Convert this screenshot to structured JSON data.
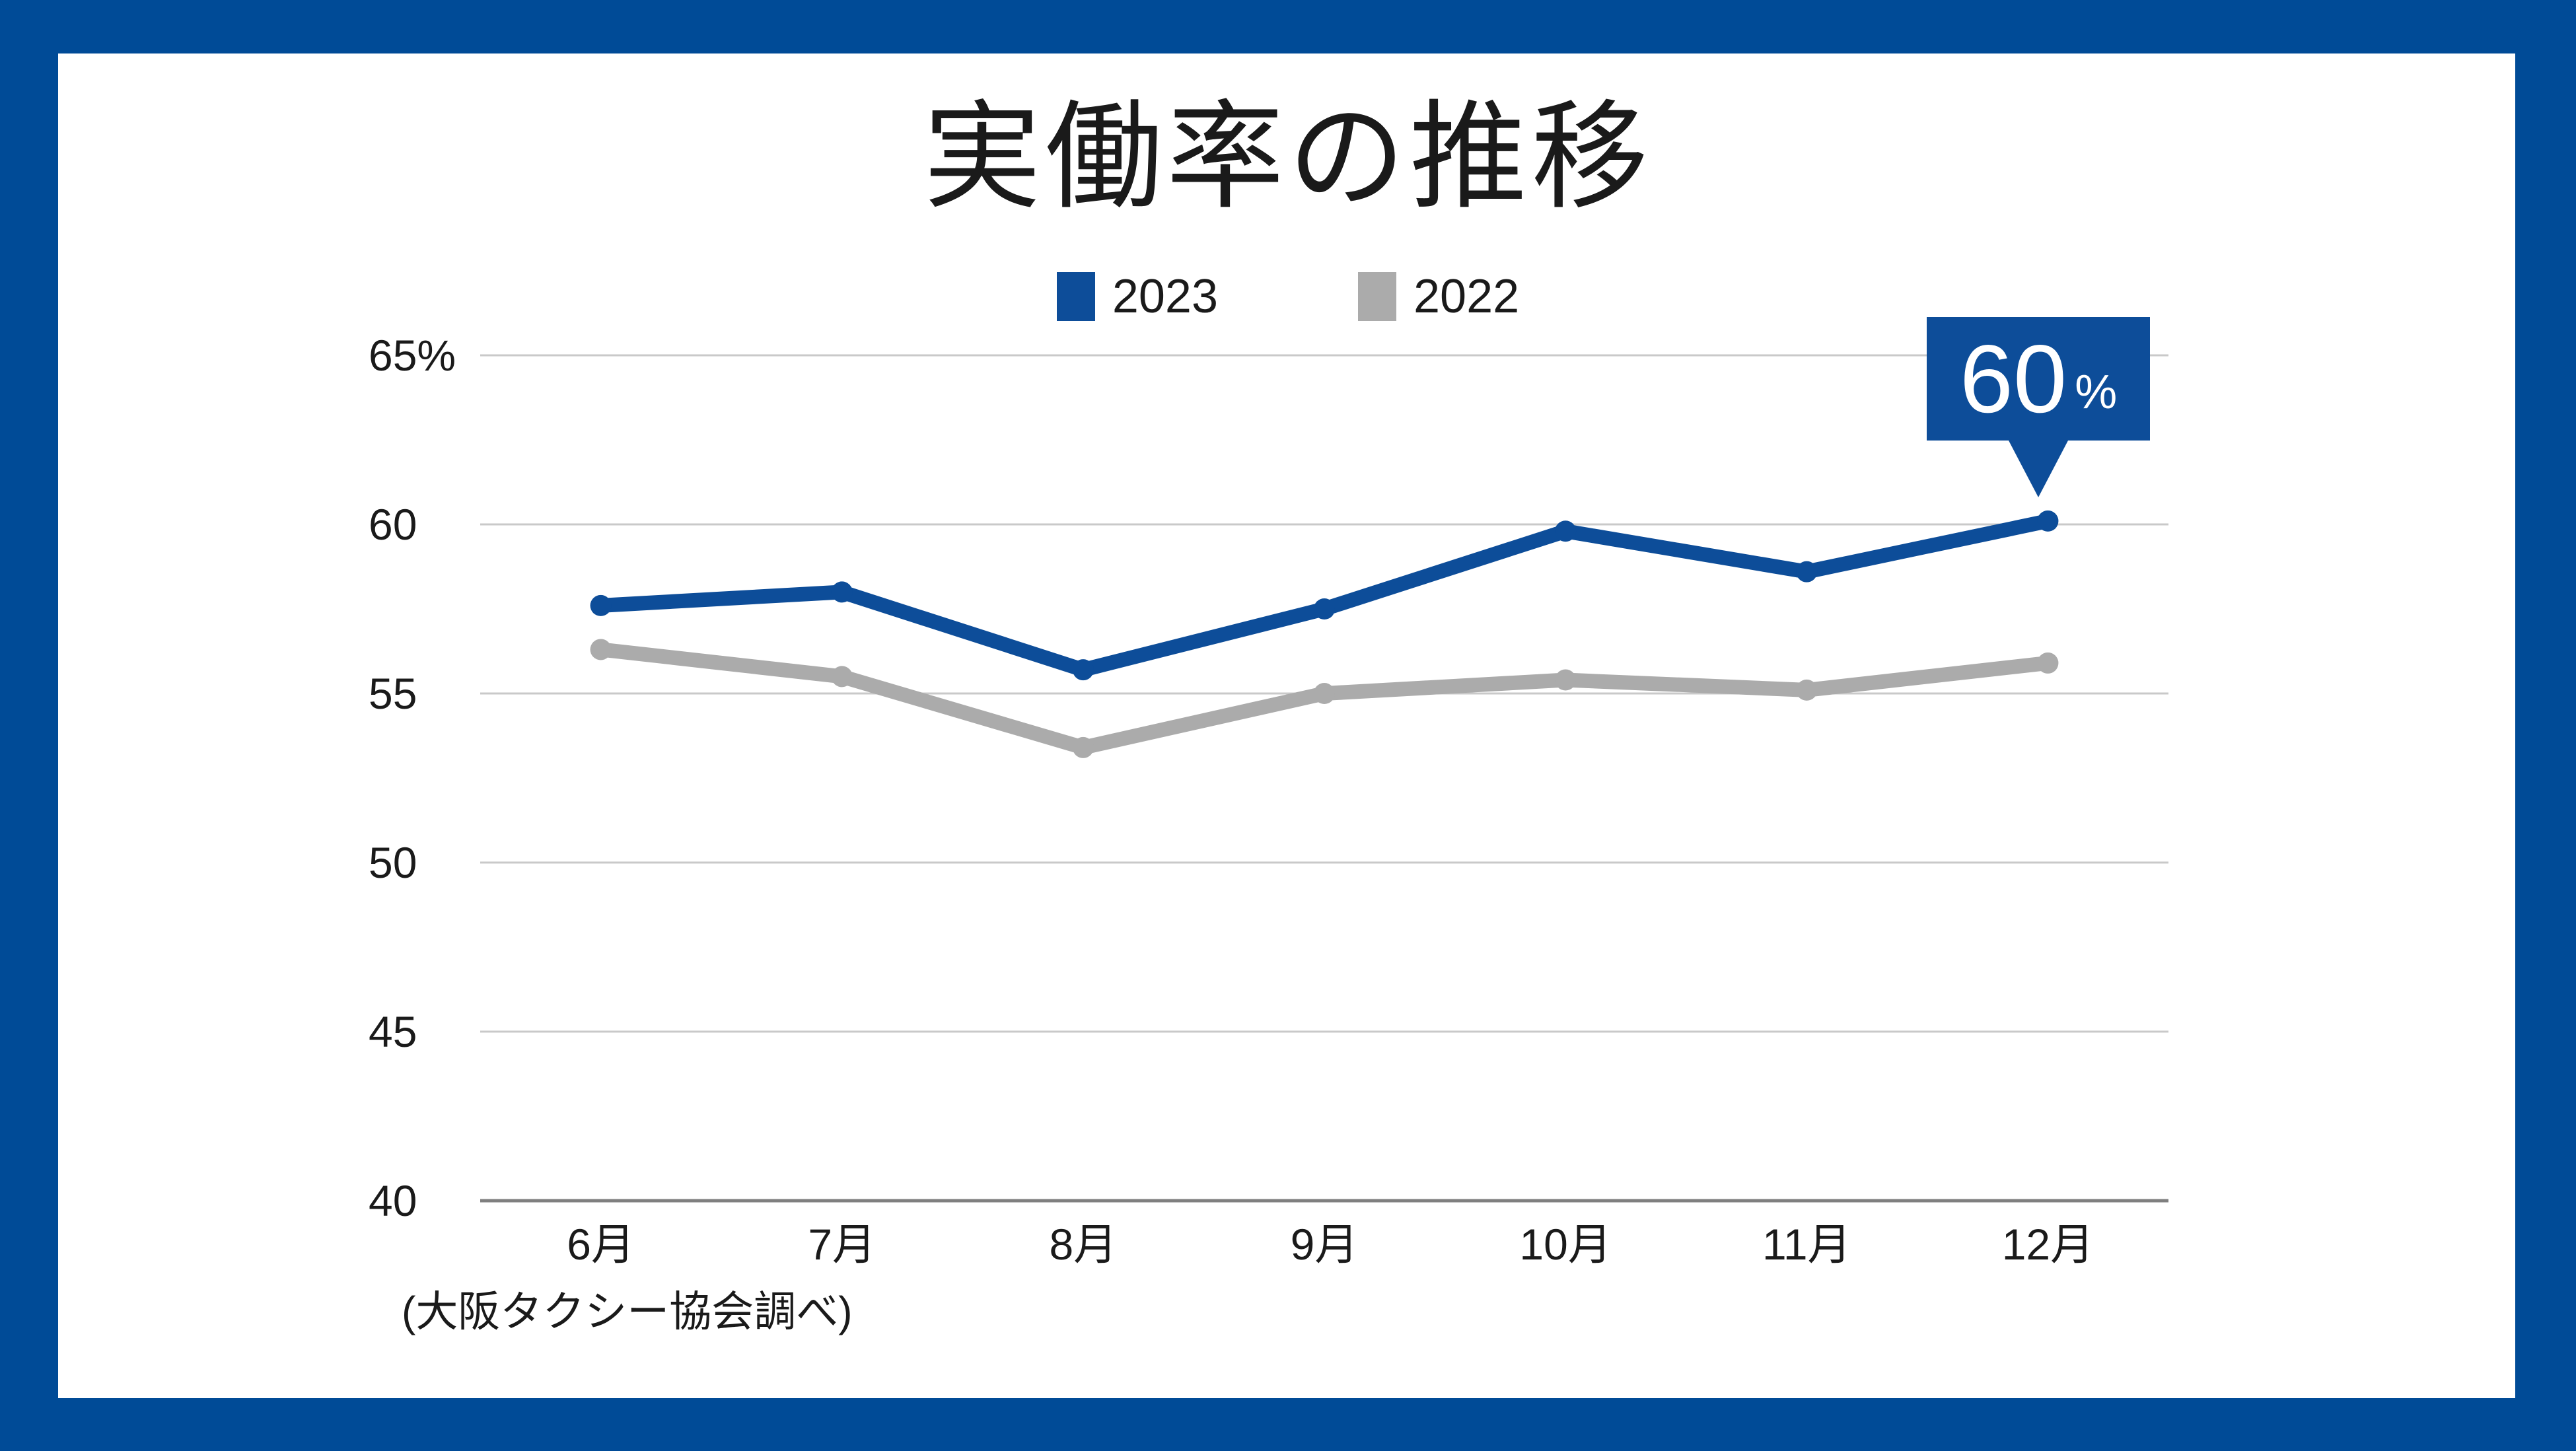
{
  "chart_data": {
    "type": "line",
    "title": "実働率の推移",
    "categories": [
      "6月",
      "7月",
      "8月",
      "9月",
      "10月",
      "11月",
      "12月"
    ],
    "series": [
      {
        "name": "2023",
        "color": "#0d4d99",
        "values": [
          57.6,
          58.0,
          55.7,
          57.5,
          59.8,
          58.6,
          60.1
        ]
      },
      {
        "name": "2022",
        "color": "#ababab",
        "values": [
          56.3,
          55.5,
          53.4,
          55.0,
          55.4,
          55.1,
          55.9
        ]
      }
    ],
    "ylim": [
      40,
      65
    ],
    "yticks": [
      {
        "value": 65,
        "label": "65%"
      },
      {
        "value": 60,
        "label": "60"
      },
      {
        "value": 55,
        "label": "55"
      },
      {
        "value": 50,
        "label": "50"
      },
      {
        "value": 45,
        "label": "45"
      },
      {
        "value": 40,
        "label": "40"
      }
    ],
    "xlabel": "",
    "ylabel": "",
    "grid": "horizontal",
    "legend_position": "top"
  },
  "callout": {
    "value": "60",
    "unit": "%"
  },
  "source_note": "(大阪タクシー協会調べ)",
  "colors": {
    "frame_border": "#004b97",
    "accent_blue": "#0d4d99",
    "series_2022_gray": "#ababab",
    "gridline": "#c9c9c9",
    "axis_line": "#7f7f7f",
    "text": "#1a1a1a",
    "callout_text": "#ffffff",
    "card_background": "#ffffff"
  }
}
